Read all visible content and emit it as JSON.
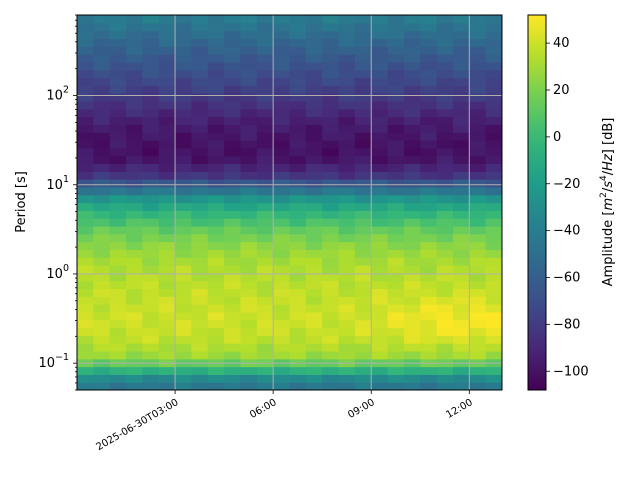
{
  "chart_data": {
    "type": "heatmap",
    "title": "",
    "xlabel": "",
    "ylabel": "Period [s]",
    "colorbar_label_parts": [
      "Amplitude [",
      "m",
      "2",
      "/",
      "s",
      "4",
      "/",
      "Hz",
      "] [dB]"
    ],
    "x_tick_labels": [
      "2025-06-30T03:00",
      "06:00",
      "09:00",
      "12:00"
    ],
    "x_tick_hours": [
      3,
      6,
      9,
      12
    ],
    "x_range_hours": [
      0.0,
      13.0
    ],
    "y_scale": "log",
    "y_range_s": [
      0.05,
      800
    ],
    "y_tick_values": [
      0.1,
      1,
      10,
      100
    ],
    "y_tick_labels": [
      {
        "base": "10",
        "exp": "−1"
      },
      {
        "base": "10",
        "exp": "0"
      },
      {
        "base": "10",
        "exp": "1"
      },
      {
        "base": "10",
        "exp": "2"
      }
    ],
    "colormap": "viridis",
    "colorbar_range_db": [
      -108,
      52
    ],
    "colorbar_ticks": [
      40,
      20,
      0,
      -20,
      -40,
      -60,
      -80,
      -100
    ],
    "colorbar_tick_labels": [
      "40",
      "20",
      "0",
      "−20",
      "−40",
      "−60",
      "−80",
      "−100"
    ],
    "grid": true,
    "period_profile_db": [
      [
        0.05,
        -50
      ],
      [
        0.07,
        -30
      ],
      [
        0.09,
        5
      ],
      [
        0.12,
        28
      ],
      [
        0.2,
        38
      ],
      [
        0.3,
        40
      ],
      [
        0.5,
        38
      ],
      [
        1.0,
        34
      ],
      [
        1.5,
        30
      ],
      [
        2.0,
        25
      ],
      [
        3.0,
        15
      ],
      [
        5.0,
        -5
      ],
      [
        7.0,
        -25
      ],
      [
        10.0,
        -60
      ],
      [
        13.0,
        -85
      ],
      [
        20.0,
        -100
      ],
      [
        30.0,
        -100
      ],
      [
        50.0,
        -95
      ],
      [
        100.0,
        -80
      ],
      [
        200.0,
        -68
      ],
      [
        400.0,
        -55
      ],
      [
        800.0,
        -40
      ]
    ]
  }
}
